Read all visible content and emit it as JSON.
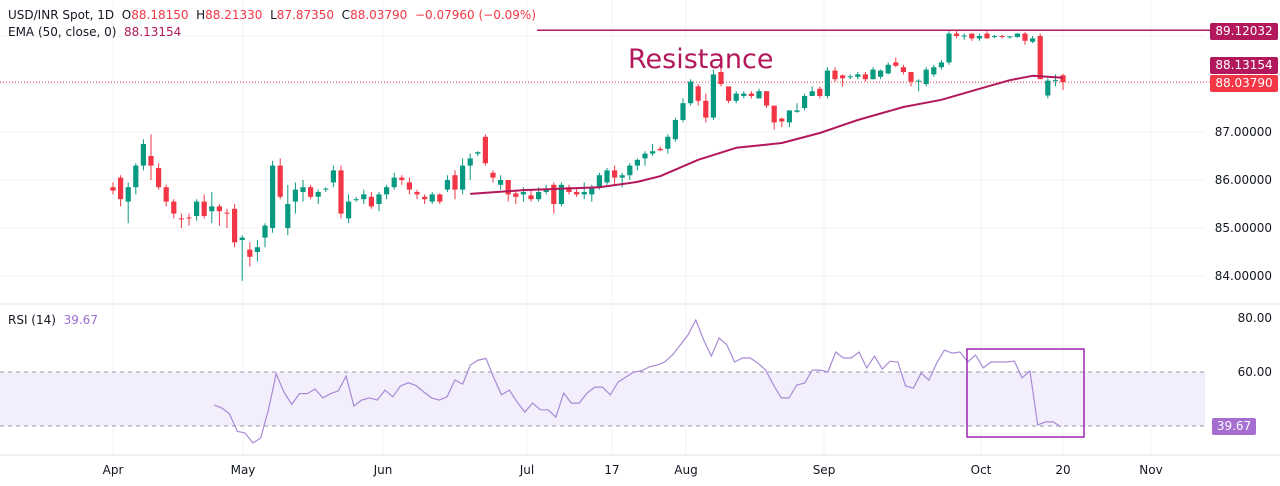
{
  "legend": {
    "symbol": "USD/INR Spot, 1D",
    "open_label": "O",
    "open": "88.18150",
    "high_label": "H",
    "high": "88.21330",
    "low_label": "L",
    "low": "87.87350",
    "close_label": "C",
    "close": "88.03790",
    "change": "−0.07960 (−0.09%)",
    "ema_label": "EMA (50, close, 0)",
    "ema_value": "88.13154",
    "rsi_label": "RSI (14)",
    "rsi_value": "39.67"
  },
  "annotation": "Resistance",
  "price_axis": {
    "ticks": [
      "87.00000",
      "86.00000",
      "85.00000",
      "84.00000"
    ],
    "resistance_badge": "89.12032",
    "ema_badge": "88.13154",
    "last_badge": "88.03790"
  },
  "rsi_axis": {
    "ticks": [
      "80.00",
      "60.00"
    ],
    "last_badge": "39.67"
  },
  "time_axis": [
    "Apr",
    "May",
    "Jun",
    "Jul",
    "17",
    "Aug",
    "Sep",
    "Oct",
    "20",
    "Nov"
  ],
  "colors": {
    "up": "#089981",
    "down": "#f23645",
    "ema": "#b2185b",
    "resistance": "#b2185b",
    "rsi": "#a88ad6",
    "rsi_band": "#f3eefb",
    "highlight_box": "#9c27b0"
  },
  "chart_data": [
    {
      "type": "candlestick",
      "title": "USD/INR Spot, 1D",
      "ylim": [
        83.7,
        89.3
      ],
      "resistance": 89.12032,
      "last_price": 88.0379,
      "candles": [
        [
          85.85,
          85.95,
          85.7,
          85.78
        ],
        [
          86.05,
          86.1,
          85.45,
          85.6
        ],
        [
          85.55,
          85.95,
          85.1,
          85.85
        ],
        [
          85.85,
          86.35,
          85.7,
          86.3
        ],
        [
          86.3,
          86.85,
          86.2,
          86.75
        ],
        [
          86.5,
          86.95,
          86.0,
          86.3
        ],
        [
          86.25,
          86.35,
          85.8,
          85.85
        ],
        [
          85.85,
          85.9,
          85.45,
          85.55
        ],
        [
          85.55,
          85.6,
          85.2,
          85.3
        ],
        [
          85.2,
          85.3,
          85.0,
          85.18
        ],
        [
          85.22,
          85.3,
          85.05,
          85.2
        ],
        [
          85.25,
          85.6,
          85.15,
          85.55
        ],
        [
          85.55,
          85.7,
          85.2,
          85.25
        ],
        [
          85.35,
          85.75,
          85.1,
          85.45
        ],
        [
          85.45,
          85.5,
          85.05,
          85.35
        ],
        [
          85.32,
          85.4,
          85.0,
          85.3
        ],
        [
          85.4,
          85.5,
          84.6,
          84.7
        ],
        [
          84.75,
          84.85,
          83.9,
          84.8
        ],
        [
          84.55,
          84.7,
          84.2,
          84.4
        ],
        [
          84.5,
          84.75,
          84.3,
          84.6
        ],
        [
          84.8,
          85.1,
          84.6,
          85.05
        ],
        [
          85.0,
          86.4,
          84.9,
          86.3
        ],
        [
          86.3,
          86.45,
          85.6,
          85.65
        ],
        [
          85.0,
          85.9,
          84.85,
          85.5
        ],
        [
          85.55,
          85.95,
          85.3,
          85.8
        ],
        [
          85.75,
          86.0,
          85.55,
          85.85
        ],
        [
          85.85,
          85.9,
          85.6,
          85.65
        ],
        [
          85.65,
          85.8,
          85.5,
          85.75
        ],
        [
          85.8,
          85.85,
          85.75,
          85.82
        ],
        [
          85.95,
          86.3,
          85.85,
          86.2
        ],
        [
          86.2,
          86.3,
          85.2,
          85.3
        ],
        [
          85.2,
          85.7,
          85.1,
          85.55
        ],
        [
          85.6,
          85.65,
          85.55,
          85.6
        ],
        [
          85.6,
          85.8,
          85.5,
          85.7
        ],
        [
          85.65,
          85.75,
          85.4,
          85.45
        ],
        [
          85.5,
          85.75,
          85.35,
          85.7
        ],
        [
          85.7,
          85.9,
          85.6,
          85.85
        ],
        [
          85.85,
          86.15,
          85.8,
          86.05
        ],
        [
          86.05,
          86.1,
          85.9,
          86.0
        ],
        [
          85.95,
          86.05,
          85.7,
          85.8
        ],
        [
          85.75,
          85.8,
          85.6,
          85.7
        ],
        [
          85.65,
          85.7,
          85.5,
          85.6
        ],
        [
          85.55,
          85.75,
          85.5,
          85.7
        ],
        [
          85.7,
          85.72,
          85.5,
          85.55
        ],
        [
          85.8,
          86.1,
          85.75,
          86.0
        ],
        [
          86.1,
          86.2,
          85.6,
          85.8
        ],
        [
          85.8,
          86.45,
          85.7,
          86.3
        ],
        [
          86.3,
          86.55,
          86.0,
          86.45
        ],
        [
          86.55,
          86.6,
          86.5,
          86.58
        ],
        [
          86.9,
          86.95,
          86.3,
          86.35
        ],
        [
          86.15,
          86.2,
          85.95,
          86.05
        ],
        [
          85.9,
          86.1,
          85.8,
          86.0
        ],
        [
          86.0,
          86.0,
          85.55,
          85.7
        ],
        [
          85.72,
          85.8,
          85.5,
          85.65
        ],
        [
          85.7,
          85.85,
          85.55,
          85.75
        ],
        [
          85.68,
          85.8,
          85.55,
          85.6
        ],
        [
          85.6,
          85.85,
          85.55,
          85.75
        ],
        [
          85.75,
          85.9,
          85.7,
          85.8
        ],
        [
          85.9,
          85.95,
          85.3,
          85.5
        ],
        [
          85.5,
          85.95,
          85.45,
          85.9
        ],
        [
          85.85,
          85.9,
          85.7,
          85.75
        ],
        [
          85.75,
          85.85,
          85.65,
          85.7
        ],
        [
          85.7,
          85.95,
          85.6,
          85.75
        ],
        [
          85.7,
          85.9,
          85.55,
          85.85
        ],
        [
          85.85,
          86.15,
          85.8,
          86.1
        ],
        [
          85.95,
          86.25,
          85.9,
          86.2
        ],
        [
          86.2,
          86.3,
          85.9,
          86.05
        ],
        [
          86.05,
          86.15,
          85.85,
          86.1
        ],
        [
          86.1,
          86.35,
          86.0,
          86.3
        ],
        [
          86.3,
          86.45,
          86.2,
          86.42
        ],
        [
          86.45,
          86.6,
          86.3,
          86.55
        ],
        [
          86.55,
          86.75,
          86.5,
          86.6
        ],
        [
          86.65,
          86.7,
          86.6,
          86.62
        ],
        [
          86.65,
          86.95,
          86.55,
          86.9
        ],
        [
          86.85,
          87.3,
          86.8,
          87.25
        ],
        [
          87.25,
          87.7,
          87.2,
          87.6
        ],
        [
          87.6,
          88.1,
          87.55,
          88.05
        ],
        [
          87.95,
          88.0,
          87.55,
          87.65
        ],
        [
          87.65,
          87.8,
          87.2,
          87.3
        ],
        [
          87.3,
          88.3,
          87.25,
          88.2
        ],
        [
          88.25,
          88.35,
          87.95,
          88.0
        ],
        [
          87.95,
          87.95,
          87.6,
          87.65
        ],
        [
          87.65,
          87.85,
          87.6,
          87.8
        ],
        [
          87.75,
          87.85,
          87.7,
          87.8
        ],
        [
          87.8,
          87.85,
          87.7,
          87.75
        ],
        [
          87.7,
          87.9,
          87.7,
          87.85
        ],
        [
          87.85,
          87.85,
          87.5,
          87.55
        ],
        [
          87.55,
          87.55,
          87.05,
          87.2
        ],
        [
          87.28,
          87.3,
          87.1,
          87.22
        ],
        [
          87.2,
          87.45,
          87.1,
          87.45
        ],
        [
          87.42,
          87.6,
          87.4,
          87.45
        ],
        [
          87.5,
          87.8,
          87.45,
          87.75
        ],
        [
          87.75,
          87.95,
          87.75,
          87.85
        ],
        [
          87.9,
          87.95,
          87.7,
          87.75
        ],
        [
          87.75,
          88.35,
          87.7,
          88.28
        ],
        [
          88.28,
          88.35,
          88.05,
          88.1
        ],
        [
          88.18,
          88.2,
          87.95,
          88.12
        ],
        [
          88.15,
          88.2,
          88.1,
          88.16
        ],
        [
          88.15,
          88.25,
          88.1,
          88.2
        ],
        [
          88.2,
          88.25,
          88.05,
          88.1
        ],
        [
          88.1,
          88.35,
          88.1,
          88.3
        ],
        [
          88.15,
          88.3,
          88.1,
          88.28
        ],
        [
          88.22,
          88.45,
          88.2,
          88.4
        ],
        [
          88.45,
          88.55,
          88.35,
          88.38
        ],
        [
          88.35,
          88.4,
          88.2,
          88.25
        ],
        [
          88.25,
          88.25,
          87.95,
          88.05
        ],
        [
          88.05,
          88.1,
          87.85,
          88.07
        ],
        [
          88.0,
          88.35,
          87.95,
          88.3
        ],
        [
          88.2,
          88.4,
          88.15,
          88.35
        ],
        [
          88.35,
          88.5,
          88.3,
          88.45
        ],
        [
          88.45,
          89.1,
          88.4,
          89.05
        ],
        [
          89.05,
          89.12,
          88.95,
          89.0
        ],
        [
          89.0,
          89.05,
          88.92,
          89.01
        ],
        [
          89.05,
          89.05,
          88.9,
          88.95
        ],
        [
          88.95,
          89.05,
          88.9,
          89.0
        ],
        [
          89.05,
          89.1,
          88.95,
          88.95
        ],
        [
          88.98,
          89.02,
          88.95,
          89.0
        ],
        [
          89.0,
          89.02,
          88.95,
          88.98
        ],
        [
          88.98,
          89.0,
          88.95,
          88.99
        ],
        [
          88.98,
          89.06,
          88.96,
          89.05
        ],
        [
          89.05,
          89.08,
          88.82,
          88.9
        ],
        [
          88.88,
          89.0,
          88.85,
          88.95
        ],
        [
          89.0,
          89.05,
          88.1,
          88.1
        ],
        [
          87.76,
          88.12,
          87.7,
          88.07
        ],
        [
          88.07,
          88.2,
          87.95,
          88.08
        ],
        [
          88.1815,
          88.2133,
          87.8735,
          88.0379
        ]
      ],
      "ema": {
        "name": "EMA (50, close, 0)",
        "points": [
          [
            47,
            85.71
          ],
          [
            54,
            85.79
          ],
          [
            64,
            85.85
          ],
          [
            69,
            85.96
          ],
          [
            72,
            86.08
          ],
          [
            77,
            86.42
          ],
          [
            82,
            86.67
          ],
          [
            88,
            86.77
          ],
          [
            93,
            86.98
          ],
          [
            98,
            87.25
          ],
          [
            104,
            87.52
          ],
          [
            109,
            87.67
          ],
          [
            114,
            87.9
          ],
          [
            118,
            88.08
          ],
          [
            121,
            88.17
          ],
          [
            125,
            88.13154
          ]
        ]
      }
    },
    {
      "type": "line",
      "title": "RSI (14)",
      "ylim": [
        30,
        85
      ],
      "levels": [
        60,
        40
      ],
      "values": [
        47.8,
        46.7,
        44.5,
        38,
        37.4,
        33.7,
        35.5,
        46,
        59.3,
        52.6,
        48,
        52,
        52,
        53.7,
        50.4,
        52,
        53,
        58.5,
        47.4,
        49.6,
        50.4,
        49.6,
        53.3,
        50.8,
        54.8,
        56,
        55,
        52.6,
        50.4,
        49.6,
        50.8,
        57,
        55.5,
        62.6,
        64.4,
        65,
        58,
        51.5,
        53.3,
        48.9,
        45.2,
        48.5,
        46,
        46,
        43.3,
        52.2,
        48.5,
        48.5,
        52.2,
        54.4,
        54.4,
        51.5,
        56.3,
        58.1,
        60,
        60.4,
        61.9,
        62.6,
        63.7,
        66.3,
        70,
        73.7,
        79.3,
        71.9,
        65.9,
        72.6,
        70,
        63.7,
        65.2,
        65.2,
        63.3,
        60.7,
        55.2,
        50.4,
        50.4,
        55.2,
        55.9,
        60.7,
        60.7,
        60,
        67.4,
        65.2,
        65.2,
        67.4,
        61.5,
        65.9,
        61.1,
        64,
        63.7,
        54.8,
        54,
        59.6,
        57,
        63.3,
        68.1,
        67,
        67.4,
        63.7,
        66.3,
        61.5,
        63.7,
        63.7,
        63.7,
        64,
        57.8,
        60.4,
        40.4,
        41.5,
        41.5,
        39.67
      ]
    }
  ]
}
